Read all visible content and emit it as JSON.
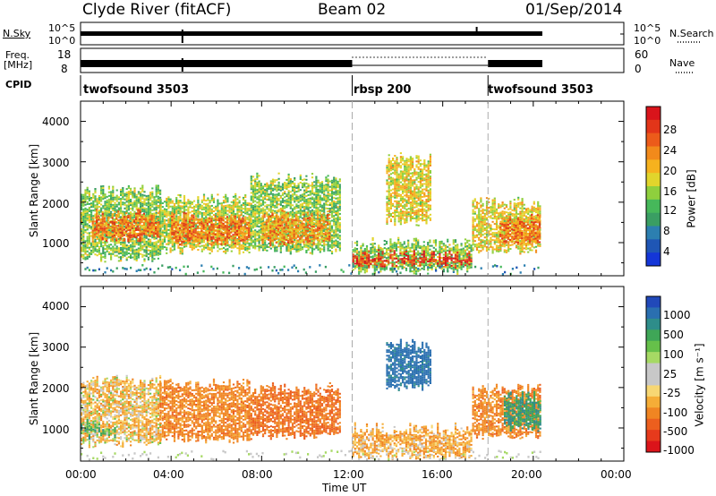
{
  "header": {
    "station": "Clyde River (fitACF)",
    "beam": "Beam 02",
    "date": "01/Sep/2014"
  },
  "nsky": {
    "label": "N.Sky",
    "left_ticks": [
      "10^5",
      "10^0"
    ],
    "right_ticks": [
      "10^5",
      "10^0"
    ],
    "right_label": "N.Search"
  },
  "freq": {
    "label_line1": "Freq.",
    "label_line2": "[MHz]",
    "left_ticks": [
      "18",
      "8"
    ],
    "right_ticks": [
      "60",
      "0"
    ],
    "right_label": "Nave"
  },
  "cpid": {
    "label": "CPID",
    "segments": [
      {
        "name": "twofsound 3503",
        "start_h": 0,
        "end_h": 12
      },
      {
        "name": "rbsp 200",
        "start_h": 12,
        "end_h": 18
      },
      {
        "name": "twofsound 3503",
        "start_h": 18,
        "end_h": 20.5
      }
    ]
  },
  "power_panel": {
    "ylabel": "Slant Range [km]",
    "ytick_labels": [
      "1000",
      "2000",
      "3000",
      "4000"
    ],
    "colorbar": {
      "label": "Power [dB]",
      "tick_labels": [
        "4",
        "8",
        "12",
        "16",
        "20",
        "24",
        "28"
      ],
      "colors": [
        "#1436d8",
        "#1f56b5",
        "#2c7fb0",
        "#3a9e63",
        "#46b85a",
        "#8fcf3d",
        "#e1d52c",
        "#f6b21e",
        "#f28a1b",
        "#ec5b1a",
        "#e23519",
        "#d9141b"
      ]
    }
  },
  "velocity_panel": {
    "ylabel": "Slant Range [km]",
    "ytick_labels": [
      "1000",
      "2000",
      "3000",
      "4000"
    ],
    "colorbar": {
      "label": "Velocity [m s⁻¹]",
      "tick_labels": [
        "1000",
        "500",
        "100",
        "25",
        "-25",
        "-100",
        "-500",
        "-1000"
      ],
      "colors": [
        "#2149b9",
        "#2a6fb0",
        "#2e8d8a",
        "#3fa657",
        "#66c04a",
        "#a6d964",
        "#c8c8c8",
        "#c8c8c8",
        "#f7d774",
        "#f5ad37",
        "#f08522",
        "#ec5f1e",
        "#e63a1c",
        "#db141a"
      ]
    }
  },
  "xaxis": {
    "label": "Time UT",
    "tick_labels": [
      "00:00",
      "04:00",
      "08:00",
      "12:00",
      "16:00",
      "20:00",
      "00:00"
    ]
  },
  "chart_data": [
    {
      "type": "heatmap",
      "title": "Power",
      "xlabel": "Time UT",
      "ylabel": "Slant Range [km]",
      "x_range_h": [
        0,
        24
      ],
      "y_range_km": [
        180,
        4500
      ],
      "colorbar_label": "Power [dB]",
      "colorbar_range": [
        0,
        32
      ],
      "colorbar_ticks": [
        4,
        8,
        12,
        16,
        20,
        24,
        28
      ],
      "regions": [
        {
          "t0": 0,
          "t1": 3.5,
          "r0": 600,
          "r1": 2300,
          "value": 14
        },
        {
          "t0": 0.5,
          "t1": 3.5,
          "r0": 1100,
          "r1": 1700,
          "value": 24
        },
        {
          "t0": 3.5,
          "t1": 7.5,
          "r0": 800,
          "r1": 2100,
          "value": 16
        },
        {
          "t0": 4,
          "t1": 7.5,
          "r0": 1000,
          "r1": 1650,
          "value": 24
        },
        {
          "t0": 7.5,
          "t1": 11.5,
          "r0": 800,
          "r1": 2600,
          "value": 14
        },
        {
          "t0": 8,
          "t1": 11,
          "r0": 1000,
          "r1": 1700,
          "value": 22
        },
        {
          "t0": 12,
          "t1": 17.3,
          "r0": 300,
          "r1": 1000,
          "value": 14
        },
        {
          "t0": 12,
          "t1": 17.3,
          "r0": 450,
          "r1": 700,
          "value": 28
        },
        {
          "t0": 13.5,
          "t1": 15.5,
          "r0": 1500,
          "r1": 3100,
          "value": 18
        },
        {
          "t0": 17.3,
          "t1": 20.3,
          "r0": 800,
          "r1": 2000,
          "value": 18
        },
        {
          "t0": 18.5,
          "t1": 20.3,
          "r0": 1000,
          "r1": 1600,
          "value": 24
        }
      ]
    },
    {
      "type": "heatmap",
      "title": "Velocity",
      "xlabel": "Time UT",
      "ylabel": "Slant Range [km]",
      "x_range_h": [
        0,
        24
      ],
      "y_range_km": [
        180,
        4500
      ],
      "colorbar_label": "Velocity [m s⁻¹]",
      "colorbar_ticks": [
        1000,
        500,
        100,
        25,
        -25,
        -100,
        -500,
        -1000
      ],
      "regions": [
        {
          "t0": 0,
          "t1": 3.5,
          "r0": 600,
          "r1": 2200,
          "value": -100
        },
        {
          "t0": 0,
          "t1": 1.5,
          "r0": 800,
          "r1": 1100,
          "value": 100
        },
        {
          "t0": 3.5,
          "t1": 7.5,
          "r0": 700,
          "r1": 2100,
          "value": -300
        },
        {
          "t0": 7.5,
          "t1": 11.5,
          "r0": 800,
          "r1": 2000,
          "value": -400
        },
        {
          "t0": 12,
          "t1": 17.3,
          "r0": 300,
          "r1": 1000,
          "value": -150
        },
        {
          "t0": 13.5,
          "t1": 15.5,
          "r0": 2000,
          "r1": 3100,
          "value": 500
        },
        {
          "t0": 17.3,
          "t1": 20.3,
          "r0": 800,
          "r1": 2000,
          "value": -300
        },
        {
          "t0": 18.7,
          "t1": 20.3,
          "r0": 1000,
          "r1": 1800,
          "value": 200
        }
      ]
    }
  ]
}
